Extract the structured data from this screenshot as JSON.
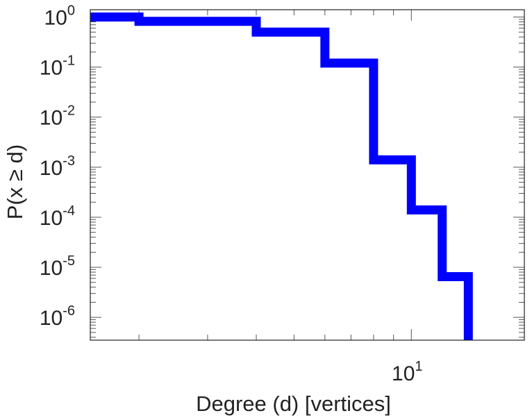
{
  "chart_data": {
    "type": "line",
    "step": true,
    "xlabel": "Degree (d) [vertices]",
    "ylabel": "P(x ≥ d)",
    "x_scale": "log",
    "y_scale": "log",
    "xlim": [
      1.5,
      19.5
    ],
    "ylim": [
      3.5e-07,
      1.4
    ],
    "grid": false,
    "x_ticks": [
      {
        "value": 10,
        "base": "10",
        "exp": "1"
      }
    ],
    "y_ticks": [
      {
        "value": 1,
        "base": "10",
        "exp": "0"
      },
      {
        "value": 0.1,
        "base": "10",
        "exp": "-1"
      },
      {
        "value": 0.01,
        "base": "10",
        "exp": "-2"
      },
      {
        "value": 0.001,
        "base": "10",
        "exp": "-3"
      },
      {
        "value": 0.0001,
        "base": "10",
        "exp": "-4"
      },
      {
        "value": 1e-05,
        "base": "10",
        "exp": "-5"
      },
      {
        "value": 1e-06,
        "base": "10",
        "exp": "-6"
      }
    ],
    "series": [
      {
        "color": "#0000ff",
        "x": [
          1.5,
          2,
          4,
          6,
          8,
          10,
          12,
          14,
          14
        ],
        "y": [
          1.0,
          0.82,
          0.5,
          0.12,
          0.0014,
          0.00014,
          6.5e-06,
          4e-07,
          3.5e-07
        ]
      }
    ]
  }
}
